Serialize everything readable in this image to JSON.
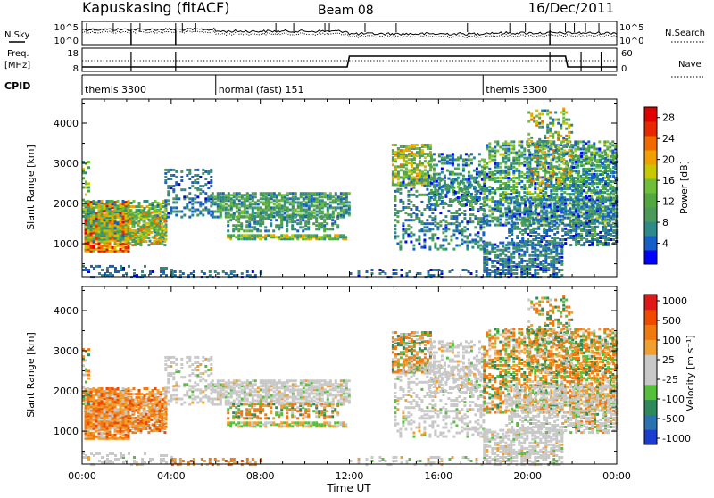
{
  "header": {
    "station": "Kapuskasing (fitACF)",
    "beam": "Beam 08",
    "date": "16/Dec/2011"
  },
  "noise_panel": {
    "left_label": "N.Sky",
    "right_label": "N.Search",
    "y_ticks_left": [
      "10^5",
      "10^0"
    ],
    "y_ticks_right": [
      "10^5",
      "10^0"
    ]
  },
  "freq_panel": {
    "left_label_1": "Freq.",
    "left_label_2": "[MHz]",
    "right_label": "Nave",
    "left_ticks": [
      "18",
      "8"
    ],
    "right_ticks": [
      "60",
      "0"
    ]
  },
  "cpid": {
    "label": "CPID",
    "segments": [
      {
        "name": "themis 3300",
        "start_h": 0.0
      },
      {
        "name": "normal (fast) 151",
        "start_h": 6.0
      },
      {
        "name": "themis 3300",
        "start_h": 18.0
      }
    ]
  },
  "x_axis": {
    "label": "Time UT",
    "ticks": [
      "00:00",
      "04:00",
      "08:00",
      "12:00",
      "16:00",
      "20:00",
      "00:00"
    ]
  },
  "chart_data": [
    {
      "type": "heatmap",
      "title": "",
      "xlabel": "",
      "ylabel": "Slant Range [km]",
      "xlim_hours": [
        0,
        24
      ],
      "ylim": [
        180,
        4600
      ],
      "y_ticks": [
        "4000",
        "3000",
        "2000",
        "1000"
      ],
      "colorbar": {
        "label": "Power [dB]",
        "range": [
          0,
          30
        ],
        "ticks": [
          "28",
          "24",
          "20",
          "16",
          "12",
          "8",
          "4"
        ],
        "colors": [
          "#0000ff",
          "#1560c8",
          "#2d8a8a",
          "#4a9a5a",
          "#52a83e",
          "#6fbf3a",
          "#c8c800",
          "#f0a000",
          "#f06a00",
          "#e82800",
          "#e00000"
        ]
      }
    },
    {
      "type": "heatmap",
      "title": "",
      "xlabel": "Time UT",
      "ylabel": "Slant Range [km]",
      "xlim_hours": [
        0,
        24
      ],
      "ylim": [
        180,
        4600
      ],
      "y_ticks": [
        "4000",
        "3000",
        "2000",
        "1000"
      ],
      "colorbar": {
        "label": "Velocity [m s⁻¹]",
        "range": [
          -1200,
          1200
        ],
        "ticks": [
          "1000",
          "500",
          "100",
          "25",
          "-25",
          "-100",
          "-500",
          "-1000"
        ],
        "colors": [
          "#1a3ccf",
          "#2a72b0",
          "#2e8a5a",
          "#56c03c",
          "#c8c8c8",
          "#c8c8c8",
          "#f0a030",
          "#f07a10",
          "#f04a00",
          "#e01818"
        ]
      }
    }
  ]
}
